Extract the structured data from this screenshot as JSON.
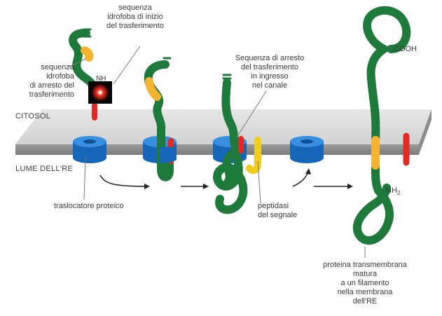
{
  "regions": {
    "cytosol": "CITOSOL",
    "er_lumen": "LUME DELL'RE"
  },
  "labels": {
    "start_transfer": [
      "sequenza",
      "idrofoba di inizio",
      "del trasferimento"
    ],
    "hydrophobic_stop": [
      "sequenza",
      "idrofoba",
      "di arresto del",
      "trasferimento"
    ],
    "nh_partial": "NH",
    "stop_transfer_entering": [
      "Sequenza di arresto",
      "del trasferimento",
      "in ingresso",
      "nel canale"
    ],
    "cooh": "COOH",
    "nh2": "NH",
    "nh2_sub": "2",
    "translocator": "traslocatore proteico",
    "signal_peptidase": [
      "peptidasi",
      "del segnale"
    ],
    "mature_protein": [
      "proteina transmembrana",
      "matura",
      "a un filamento",
      "nella membrana",
      "dell'RE"
    ]
  },
  "colors": {
    "chain": "#1e7a3a",
    "start_sequence": "#f4b431",
    "stop_sequence": "#e02a22",
    "membrane": "#c9c9c9",
    "translocator": "#1a6fc2",
    "peptidase": "#f2cc1d"
  }
}
